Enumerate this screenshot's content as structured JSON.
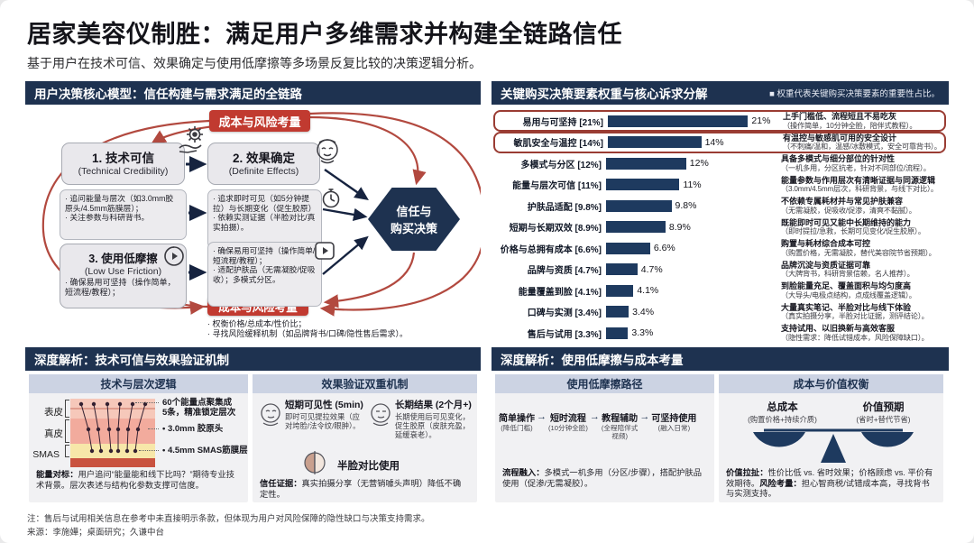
{
  "colors": {
    "navy_header": "#1e3250",
    "bar_navy": "#1e3a5f",
    "badge_red": "#c13a30",
    "arc_red": "#b2493f",
    "highlight_outline": "#9a3c33",
    "subheader_bg": "#ccd3e3"
  },
  "icons": {
    "legend_square": "■",
    "flow_arrow": "→",
    "bullet_dot": "•"
  },
  "header": {
    "title": "居家美容仪制胜：满足用户多维需求并构建全链路信任",
    "subtitle": "基于用户在技术可信、效果确定与使用低摩擦等多场景反复比较的决策逻辑分析。"
  },
  "model_panel": {
    "title": "用户决策核心模型：信任构建与需求满足的全链路",
    "top_risk_badge": "成本与风险考量",
    "bottom_risk_badge": "成本与风险考量",
    "node_tech_title": "1. 技术可信",
    "node_tech_en": "(Technical Credibility)",
    "node_effect_title": "2. 效果确定",
    "node_effect_en": "(Definite Effects)",
    "node_friction_title": "3. 使用低摩擦",
    "node_friction_en": "(Low Use Friction)",
    "node_friction_bullet": "· 确保易用可坚持（操作简单，短流程/教程）；",
    "tech_bullets": "· 追问能量与层次（如3.0mm胶原头/4.5mm筋膜层）；\n· 关注参数与科研背书。",
    "effect_bullets": "· 追求即时可见（如5分钟提拉）与长期变化（促生胶原）\n· 依赖实测证据（半脸对比/真实拍摄）。",
    "friction_bullets": "· 确保易用可坚持（操作简单/短流程/教程）；\n· 适配护肤品（无需凝胶/促吸收）；多模式分区。",
    "bottom_bullets": "· 权衡价格/总成本/性价比；\n· 寻找风险缓释机制（如品牌背书/口碑/隐性售后需求）。",
    "decision_node": "信任与\n购买决策"
  },
  "chart_data": {
    "type": "bar",
    "orientation": "horizontal",
    "title": "关键购买决策要素权重与核心诉求分解",
    "legend_note": "权重代表关键购买决策要素的重要性占比。",
    "categories": [
      "易用与可坚持 [21%]",
      "敏肌安全与温控 [14%]",
      "多模式与分区 [12%]",
      "能量与层次可信 [11%]",
      "护肤品适配 [9.8%]",
      "短期与长期双效 [8.9%]",
      "价格与总拥有成本 [6.6%]",
      "品牌与资质 [4.7%]",
      "能量覆盖到脸 [4.1%]",
      "口碑与实测 [3.4%]",
      "售后与试用 [3.3%]"
    ],
    "values": [
      21,
      14,
      12,
      11,
      9.8,
      8.9,
      6.6,
      4.7,
      4.1,
      3.4,
      3.3
    ],
    "value_labels": [
      "21%",
      "14%",
      "12%",
      "11%",
      "9.8%",
      "8.9%",
      "6.6%",
      "4.7%",
      "4.1%",
      "3.4%",
      "3.3%"
    ],
    "annotations_headline": [
      "上手门槛低、流程短且不易吃灰",
      "有温控与敏感肌可用的安全设计",
      "具备多模式与细分部位的针对性",
      "能量参数与作用层次有清晰证据与同源逻辑",
      "不依赖专属耗材并与常见护肤兼容",
      "既能即时可见又能中长期维持的能力",
      "购置与耗材综合成本可控",
      "品牌沉淀与资质证据可靠",
      "到脸能量充足、覆盖面积与均匀度高",
      "大量真实笔记、半脸对比与线下体验",
      "支持试用、以旧换新与高效客服"
    ],
    "annotations_detail": [
      "（操作简单，10分钟全脸，陪伴式教程）。",
      "（不刺痛/温和，温感/冰敷模式，安全可靠背书）。",
      "（一机多用，分区抗老，针对不同部位/流程）。",
      "（3.0mm/4.5mm层次，科研背景，与线下对比）。",
      "（无需凝胶，促吸收/促渗，清爽不黏腻）。",
      "（即时提拉/急救，长期可见变化/促生胶原）。",
      "（购置价格，无需凝胶，替代美容院节省预期）。",
      "（大牌背书，科研背景信赖，名人推荐）。",
      "（大导头/电极点结构，点成线覆盖逻辑）。",
      "（真实拍摄分享，半脸对比证据，测评结论）。",
      "（隐性需求：降低试错成本，风险保障缺口）。"
    ],
    "highlighted_rows": [
      0,
      1
    ],
    "bar_color": "#1e3a5f",
    "xlim": [
      0,
      23
    ],
    "grid": false,
    "legend_position": "top-right"
  },
  "deep_left": {
    "title": "深度解析：技术可信与效果验证机制",
    "col1": {
      "header": "技术与层次逻辑",
      "skin_labels": {
        "0": "表皮",
        "1": "真皮",
        "2": "SMAS"
      },
      "annotations": {
        "0": "60个能量点聚集成\n5条，精准锁定层次",
        "1": "3.0mm 胶原头",
        "2": "4.5mm SMAS筋膜层"
      },
      "note_lead": "能量对标：",
      "note": "用户追问“能量能和线下比吗？”期待专业技术背景。层次表述与结构化参数支撑可信度。"
    },
    "col2": {
      "header": "效果验证双重机制",
      "short_term_title": "短期可见性 (5min)",
      "short_term_desc": "即时可见提拉效果（应对垮脸/法令纹/眼肿）。",
      "long_term_title": "长期结果 (2个月+)",
      "long_term_desc": "长期使用后可见变化，促生胶原（皮肤充盈，延缓衰老）。",
      "compare_label": "半脸对比使用",
      "trust_lead": "信任证据：",
      "trust_text": "真实拍摄分享（无营销噱头声明）降低不确定性。"
    }
  },
  "deep_right": {
    "title": "深度解析：使用低摩擦与成本考量",
    "col1": {
      "header": "使用低摩擦路径",
      "steps": [
        {
          "label": "简单操作",
          "sub": "(降低门槛)"
        },
        {
          "label": "短时流程",
          "sub": "(10分钟全脸)"
        },
        {
          "label": "教程辅助",
          "sub": "(全程陪伴式\n视频)"
        },
        {
          "label": "可坚持使用",
          "sub": "(融入日常)"
        }
      ],
      "note_lead": "流程融入：",
      "note": "多模式一机多用（分区/步骤），搭配护肤品使用（促渗/无需凝胶）。"
    },
    "col2": {
      "header": "成本与价值权衡",
      "left_pan_title": "总成本",
      "left_pan_sub": "(购置价格+持续介质)",
      "right_pan_title": "价值预期",
      "right_pan_sub": "(省时+替代节省)",
      "note_lead1": "价值拉扯：",
      "note_text1": "性价比低 vs. 省时效果；价格顾虑 vs. 平价有效期待。",
      "note_lead2": "风险考量：",
      "note_text2": "担心智商税/试错成本高，寻找背书与实测支持。"
    }
  },
  "footer": {
    "note": "注：售后与试用相关信息在参考中未直接明示条款，但体现为用户对风险保障的隐性缺口与决策支持需求。",
    "source": "来源：李施嬅；桌面研究；久谦中台"
  }
}
